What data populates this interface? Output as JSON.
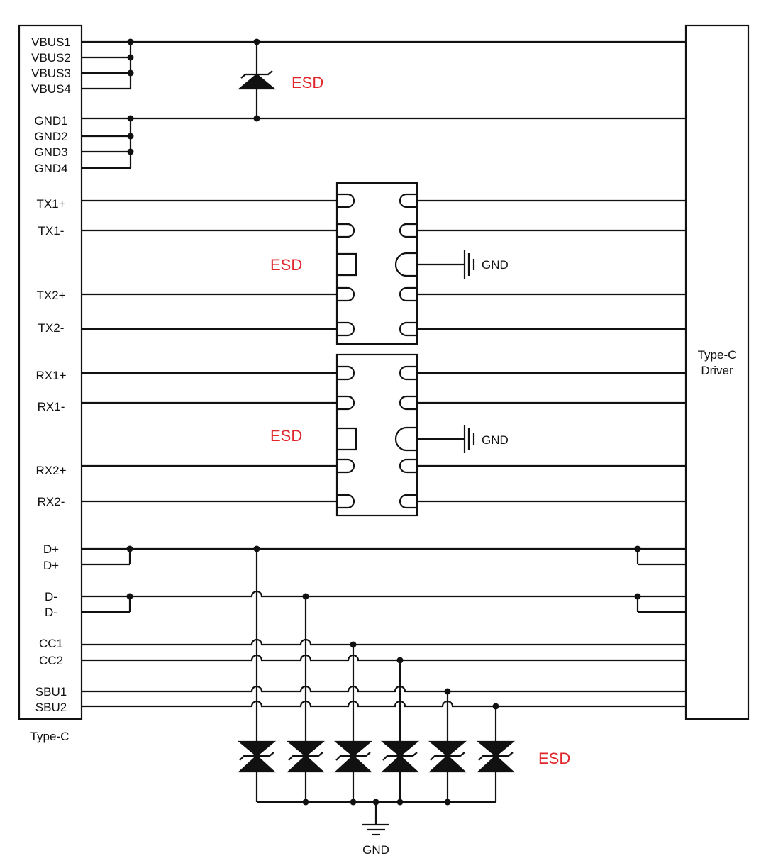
{
  "connector": {
    "label": "Type-C",
    "pins": [
      "VBUS1",
      "VBUS2",
      "VBUS3",
      "VBUS4",
      "GND1",
      "GND2",
      "GND3",
      "GND4",
      "TX1+",
      "TX1-",
      "TX2+",
      "TX2-",
      "RX1+",
      "RX1-",
      "RX2+",
      "RX2-",
      "D+",
      "D+",
      "D-",
      "D-",
      "CC1",
      "CC2",
      "SBU1",
      "SBU2"
    ]
  },
  "driver": {
    "label_line1": "Type-C",
    "label_line2": "Driver"
  },
  "esd_labels": {
    "vbus": "ESD",
    "tx": "ESD",
    "rx": "ESD",
    "bottom": "ESD"
  },
  "gnd_labels": {
    "tx": "GND",
    "rx": "GND",
    "bottom": "GND"
  },
  "colors": {
    "esd_label": "#e0262a",
    "wire": "#111111"
  }
}
